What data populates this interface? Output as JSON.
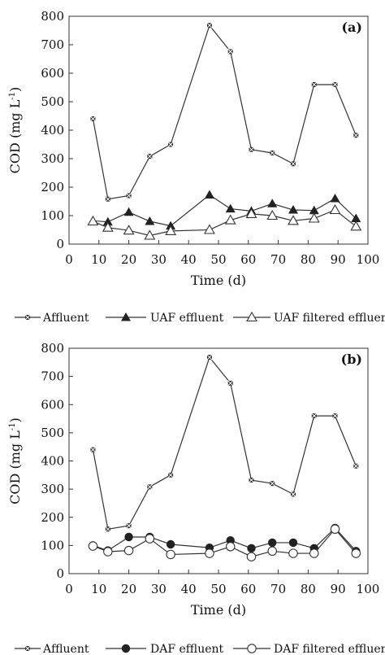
{
  "chart_data": [
    {
      "type": "line",
      "panel_label": "(a)",
      "xlabel": "Time (d)",
      "ylabel": "COD (mg L",
      "ylabel_sup": "-1",
      "ylabel_close": ")",
      "xlim": [
        0,
        100
      ],
      "ylim": [
        0,
        800
      ],
      "xticks": [
        0,
        10,
        20,
        30,
        40,
        50,
        60,
        70,
        80,
        90,
        100
      ],
      "yticks": [
        0,
        100,
        200,
        300,
        400,
        500,
        600,
        700,
        800
      ],
      "x": [
        8,
        13,
        20,
        27,
        34,
        47,
        54,
        61,
        68,
        75,
        82,
        89,
        96
      ],
      "grid": false,
      "legend_position": "bottom",
      "series": [
        {
          "name": "Affluent",
          "marker": "x-square",
          "values": [
            440,
            158,
            170,
            308,
            350,
            768,
            676,
            332,
            320,
            282,
            560,
            560,
            382
          ]
        },
        {
          "name": "UAF effluent",
          "marker": "filled-triangle",
          "values": [
            82,
            78,
            112,
            80,
            64,
            173,
            124,
            116,
            142,
            120,
            118,
            160,
            90
          ]
        },
        {
          "name": "UAF filtered effluent",
          "marker": "open-triangle",
          "values": [
            80,
            58,
            48,
            30,
            46,
            50,
            84,
            106,
            100,
            82,
            90,
            120,
            62
          ]
        }
      ]
    },
    {
      "type": "line",
      "panel_label": "(b)",
      "xlabel": "Time (d)",
      "ylabel": "COD (mg L",
      "ylabel_sup": "-1",
      "ylabel_close": ")",
      "xlim": [
        0,
        100
      ],
      "ylim": [
        0,
        800
      ],
      "xticks": [
        0,
        10,
        20,
        30,
        40,
        50,
        60,
        70,
        80,
        90,
        100
      ],
      "yticks": [
        0,
        100,
        200,
        300,
        400,
        500,
        600,
        700,
        800
      ],
      "x": [
        8,
        13,
        20,
        27,
        34,
        47,
        54,
        61,
        68,
        75,
        82,
        89,
        96
      ],
      "grid": false,
      "legend_position": "bottom",
      "series": [
        {
          "name": "Affluent",
          "marker": "x-square",
          "values": [
            440,
            158,
            170,
            308,
            350,
            768,
            676,
            332,
            320,
            282,
            560,
            560,
            382
          ]
        },
        {
          "name": "DAF effluent",
          "marker": "filled-circle",
          "values": [
            100,
            82,
            130,
            130,
            104,
            92,
            118,
            90,
            110,
            110,
            90,
            162,
            80
          ]
        },
        {
          "name": "DAF filtered effluent",
          "marker": "open-circle",
          "values": [
            98,
            78,
            82,
            124,
            68,
            72,
            96,
            60,
            80,
            72,
            72,
            158,
            72
          ]
        }
      ]
    }
  ]
}
